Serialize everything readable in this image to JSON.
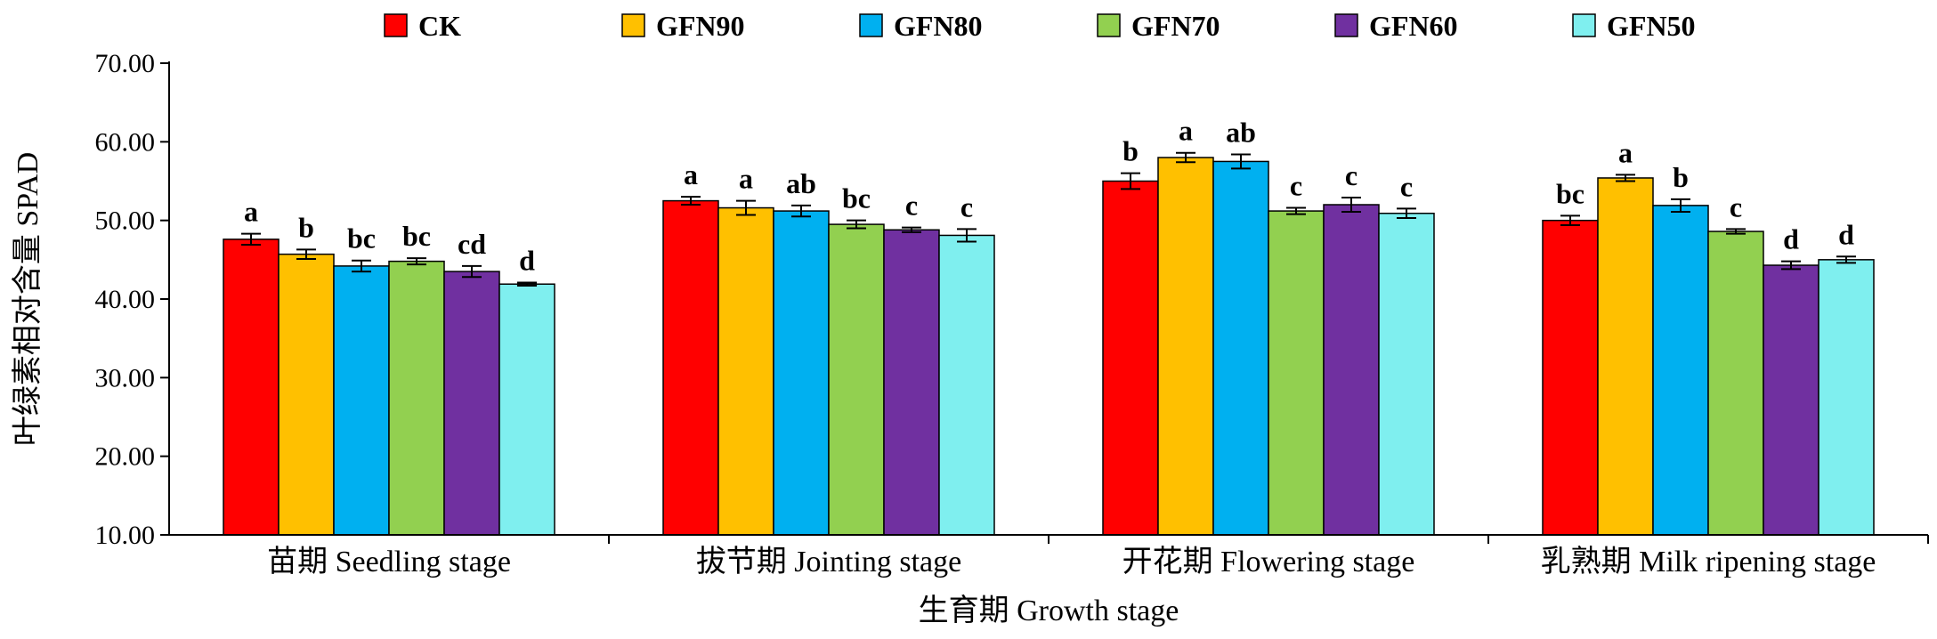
{
  "chart_data": {
    "type": "bar",
    "xlabel": "生育期 Growth stage",
    "ylabel": "叶绿素相对含量 SPAD",
    "ylim": [
      10,
      70
    ],
    "yticks": [
      "10.00",
      "20.00",
      "30.00",
      "40.00",
      "50.00",
      "60.00",
      "70.00"
    ],
    "grid": false,
    "legend_position": "top",
    "categories": [
      "苗期 Seedling stage",
      "拔节期 Jointing stage",
      "开花期 Flowering stage",
      "乳熟期 Milk ripening stage"
    ],
    "series": [
      {
        "name": "CK",
        "color": "#ff0000",
        "values": [
          47.6,
          52.5,
          55.0,
          50.0
        ],
        "errors": [
          0.7,
          0.5,
          1.0,
          0.6
        ],
        "letters": [
          "a",
          "a",
          "b",
          "bc"
        ]
      },
      {
        "name": "GFN90",
        "color": "#ffc000",
        "values": [
          45.7,
          51.6,
          58.0,
          55.4
        ],
        "errors": [
          0.6,
          0.9,
          0.6,
          0.4
        ],
        "letters": [
          "b",
          "a",
          "a",
          "a"
        ]
      },
      {
        "name": "GFN80",
        "color": "#00b0f0",
        "values": [
          44.2,
          51.2,
          57.5,
          51.9
        ],
        "errors": [
          0.7,
          0.7,
          0.9,
          0.8
        ],
        "letters": [
          "bc",
          "ab",
          "ab",
          "b"
        ]
      },
      {
        "name": "GFN70",
        "color": "#92d050",
        "values": [
          44.8,
          49.5,
          51.2,
          48.6
        ],
        "errors": [
          0.4,
          0.5,
          0.4,
          0.3
        ],
        "letters": [
          "bc",
          "bc",
          "c",
          "c"
        ]
      },
      {
        "name": "GFN60",
        "color": "#7030a0",
        "values": [
          43.5,
          48.8,
          52.0,
          44.3
        ],
        "errors": [
          0.7,
          0.3,
          0.9,
          0.5
        ],
        "letters": [
          "cd",
          "c",
          "c",
          "d"
        ]
      },
      {
        "name": "GFN50",
        "color": "#7fefef",
        "values": [
          41.9,
          48.1,
          50.9,
          45.0
        ],
        "errors": [
          0.2,
          0.8,
          0.6,
          0.4
        ],
        "letters": [
          "d",
          "c",
          "c",
          "d"
        ]
      }
    ]
  }
}
